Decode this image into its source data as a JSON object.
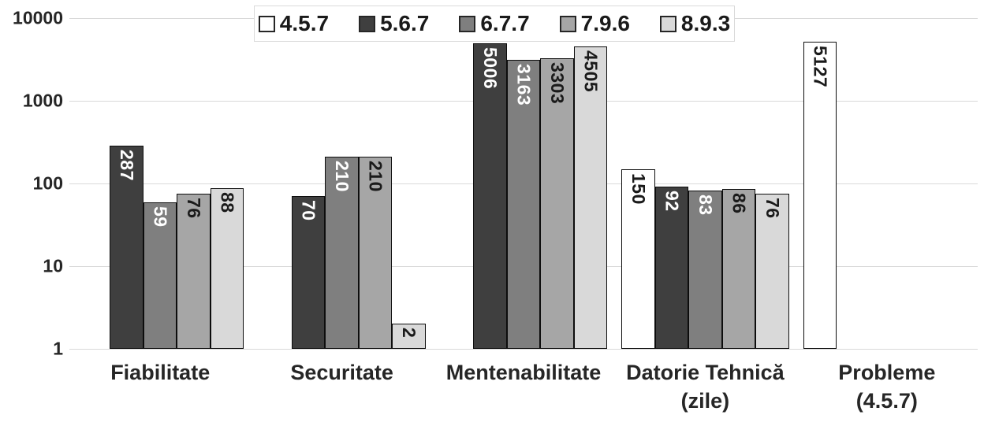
{
  "chart_data": {
    "type": "bar",
    "title": "",
    "y_scale": "log10",
    "ylim": [
      1,
      10000
    ],
    "y_ticks": [
      "10000",
      "1000",
      "100",
      "10",
      "1"
    ],
    "grid": true,
    "legend_position": "top-center",
    "categories": [
      {
        "id": "fiabilitate",
        "lines": [
          "Fiabilitate"
        ]
      },
      {
        "id": "securitate",
        "lines": [
          "Securitate"
        ]
      },
      {
        "id": "mentenabilitate",
        "lines": [
          "Mentenabilitate"
        ]
      },
      {
        "id": "datorie-tehnica",
        "lines": [
          "Datorie Tehnică",
          "(zile)"
        ]
      },
      {
        "id": "probleme",
        "lines": [
          "Probleme",
          "(4.5.7)"
        ]
      }
    ],
    "series": [
      {
        "name": "4.5.7",
        "color": "#ffffff",
        "label_color": "#1a1a1a",
        "values": [
          null,
          null,
          null,
          150,
          5127
        ]
      },
      {
        "name": "5.6.7",
        "color": "#3f3f3f",
        "label_color": "#ffffff",
        "values": [
          287,
          70,
          5006,
          92,
          null
        ]
      },
      {
        "name": "6.7.7",
        "color": "#7f7f7f",
        "label_color": "#ffffff",
        "values": [
          59,
          210,
          3163,
          83,
          null
        ]
      },
      {
        "name": "7.9.6",
        "color": "#a6a6a6",
        "label_color": "#1a1a1a",
        "values": [
          76,
          210,
          3303,
          86,
          null
        ]
      },
      {
        "name": "8.9.3",
        "color": "#d9d9d9",
        "label_color": "#1a1a1a",
        "values": [
          88,
          2,
          4505,
          76,
          null
        ]
      }
    ],
    "colors": {
      "grid": "#d9d9d9",
      "bar_border": "#0d0d0d",
      "axis_text": "#262626",
      "legend_border": "#d9d9d9",
      "background": "#ffffff"
    }
  }
}
